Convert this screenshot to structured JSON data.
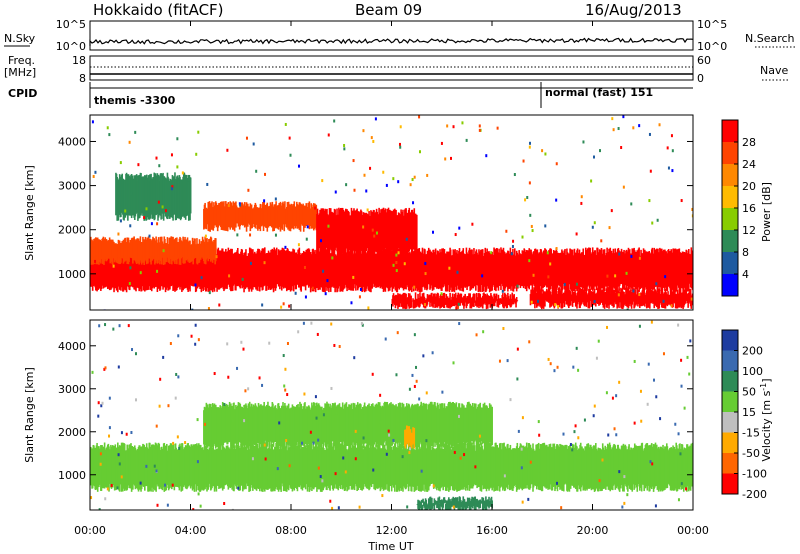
{
  "header": {
    "title": "Hokkaido (fitACF)",
    "beam": "Beam 09",
    "date": "16/Aug/2013"
  },
  "top_panels": {
    "nsky_label": "N.Sky",
    "nsearch_label": "N.Search",
    "nsky_ticks": [
      "10^5",
      "10^0"
    ],
    "nsearch_ticks": [
      "10^5",
      "10^0"
    ],
    "freq_label_1": "Freq.",
    "freq_label_2": "[MHz]",
    "freq_ticks": [
      "18",
      "8"
    ],
    "nave_label": "Nave",
    "nave_ticks": [
      "60",
      "0"
    ],
    "cpid_label": "CPID",
    "cpid_mode_1": "themis -3300",
    "cpid_mode_2": "normal (fast) 151"
  },
  "chart_data": [
    {
      "type": "heatmap",
      "panel": "power",
      "ylabel": "Slant Range [km]",
      "yticks": [
        1000,
        2000,
        3000,
        4000
      ],
      "ylim": [
        180,
        4600
      ],
      "xlim": [
        0,
        24
      ],
      "colorbar_label": "Power [dB]",
      "colorbar_ticks": [
        "28",
        "24",
        "20",
        "16",
        "12",
        "8",
        "4"
      ],
      "colorbar_colors": [
        "#ff0000",
        "#ff4400",
        "#ff8800",
        "#ffbb00",
        "#88cc00",
        "#2e8b57",
        "#1e5aa0",
        "#0000ff"
      ],
      "regions": [
        {
          "t0": 0,
          "t1": 24,
          "r0": 680,
          "r1": 1500,
          "level": "28"
        },
        {
          "t0": 0,
          "t1": 5,
          "r0": 1300,
          "r1": 1750,
          "level": "24"
        },
        {
          "t0": 4.5,
          "t1": 9,
          "r0": 2050,
          "r1": 2550,
          "level": "24"
        },
        {
          "t0": 9,
          "t1": 13,
          "r0": 1500,
          "r1": 2400,
          "level": "28"
        },
        {
          "t0": 12,
          "t1": 17,
          "r0": 300,
          "r1": 480,
          "level": "28"
        },
        {
          "t0": 17.5,
          "t1": 24,
          "r0": 300,
          "r1": 600,
          "level": "28"
        },
        {
          "t0": 1,
          "t1": 4,
          "r0": 2300,
          "r1": 3200,
          "level": "8"
        }
      ]
    },
    {
      "type": "heatmap",
      "panel": "velocity",
      "ylabel": "Slant Range [km]",
      "xlabel": "Time UT",
      "yticks": [
        1000,
        2000,
        3000,
        4000
      ],
      "ylim": [
        180,
        4600
      ],
      "xlim": [
        0,
        24
      ],
      "xticks": [
        "00:00",
        "04:00",
        "08:00",
        "12:00",
        "16:00",
        "20:00",
        "00:00"
      ],
      "colorbar_label": "Velocity [m s^-1]",
      "colorbar_ticks": [
        "200",
        "100",
        "50",
        "15",
        "-15",
        "-50",
        "-100",
        "-200"
      ],
      "colorbar_colors": [
        "#1e3ca0",
        "#3a6ab0",
        "#2e8b57",
        "#66cc33",
        "#bfbfbf",
        "#ffaa00",
        "#ff6600",
        "#ff0000"
      ],
      "regions": [
        {
          "t0": 0,
          "t1": 24,
          "r0": 700,
          "r1": 1650,
          "level": "15"
        },
        {
          "t0": 4.5,
          "t1": 16,
          "r0": 1700,
          "r1": 2600,
          "level": "15"
        },
        {
          "t0": 12.5,
          "t1": 12.9,
          "r0": 1700,
          "r1": 2050,
          "level": "-50"
        },
        {
          "t0": 13,
          "t1": 16,
          "r0": 250,
          "r1": 400,
          "level": "50"
        }
      ]
    }
  ]
}
